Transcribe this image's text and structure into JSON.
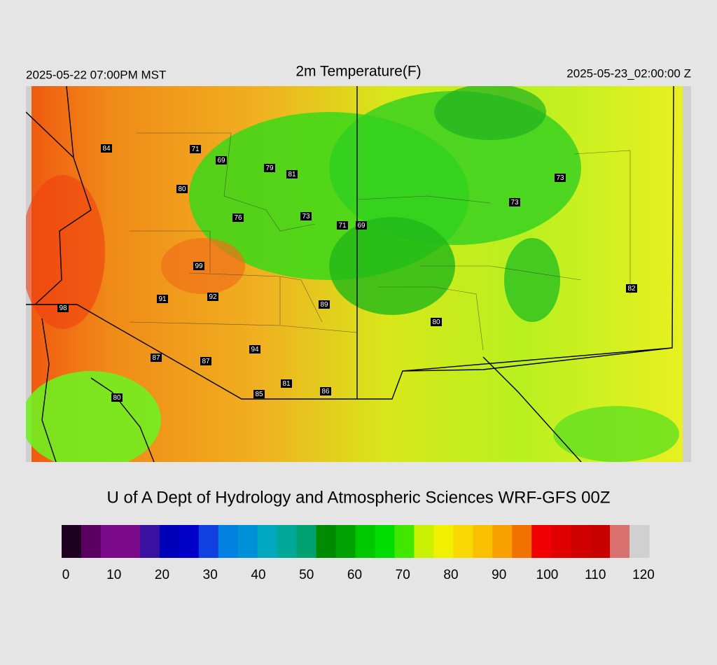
{
  "header": {
    "left": "2025-05-22 07:00PM MST",
    "title": "2m Temperature(F)",
    "right": "2025-05-23_02:00:00 Z"
  },
  "stations": [
    84,
    71,
    69,
    79,
    81,
    80,
    76,
    73,
    71,
    69,
    73,
    73,
    99,
    91,
    92,
    89,
    98,
    82,
    80,
    94,
    87,
    87,
    81,
    85,
    86,
    80
  ],
  "credit": "U of A Dept of Hydrology and Atmospheric Sciences WRF-GFS 00Z",
  "colorbar": {
    "lim": [
      0,
      120
    ],
    "ticks": [
      0,
      10,
      20,
      30,
      40,
      50,
      60,
      70,
      80,
      90,
      100,
      110,
      120
    ],
    "colors": [
      "#1e0020",
      "#5a0060",
      "#7a0a8a",
      "#7a0a8a",
      "#3a10a0",
      "#0000b8",
      "#0000c8",
      "#1040e0",
      "#0080e0",
      "#0090d8",
      "#00a8c0",
      "#00a898",
      "#00a070",
      "#008a00",
      "#00a000",
      "#00c800",
      "#00dc00",
      "#40e800",
      "#c8f000",
      "#f0f000",
      "#f8d800",
      "#f8c000",
      "#f8a000",
      "#f07000",
      "#f00000",
      "#e00000",
      "#d00000",
      "#c80000",
      "#d87070",
      "#d0d0d0"
    ]
  }
}
